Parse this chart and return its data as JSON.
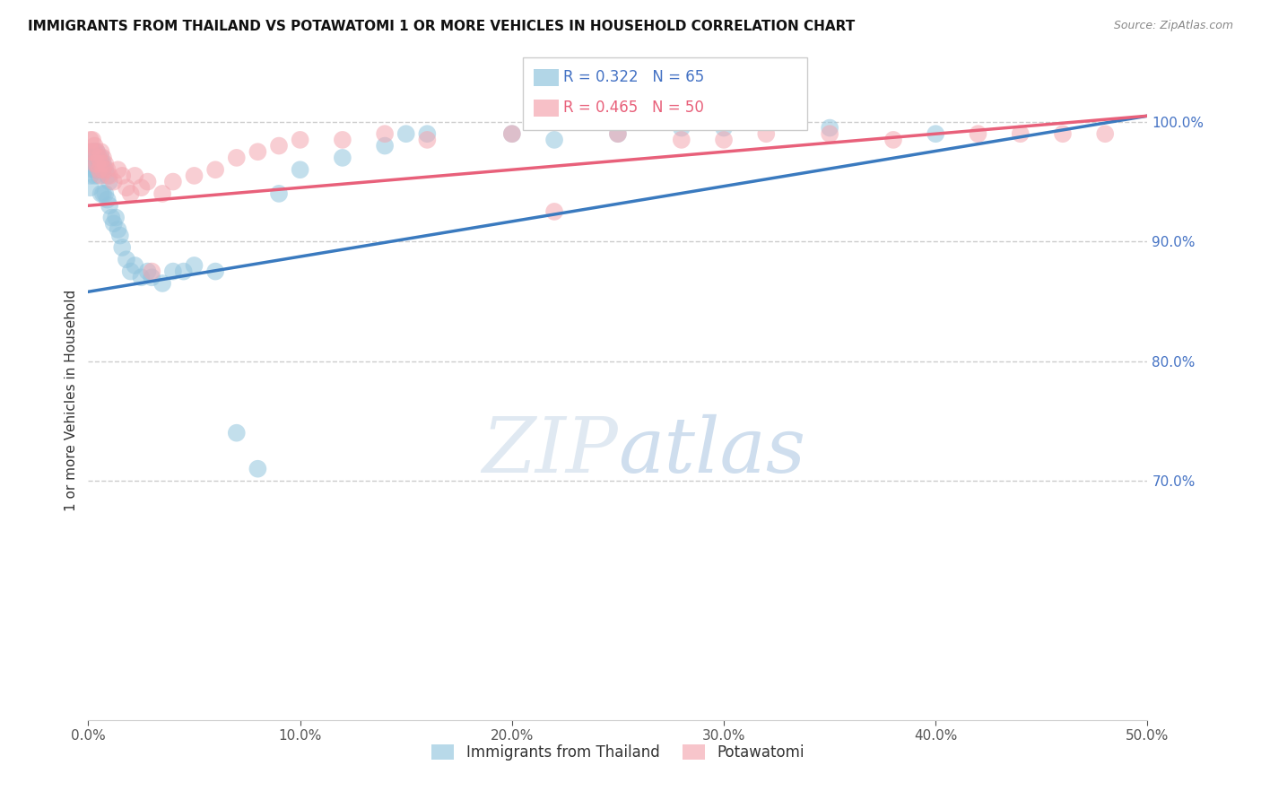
{
  "title": "IMMIGRANTS FROM THAILAND VS POTAWATOMI 1 OR MORE VEHICLES IN HOUSEHOLD CORRELATION CHART",
  "source": "Source: ZipAtlas.com",
  "ylabel": "1 or more Vehicles in Household",
  "r_blue": 0.322,
  "n_blue": 65,
  "r_pink": 0.465,
  "n_pink": 50,
  "blue_color": "#92c5de",
  "pink_color": "#f4a6b0",
  "blue_line_color": "#3a7abf",
  "pink_line_color": "#e8607a",
  "legend_blue_label": "Immigrants from Thailand",
  "legend_pink_label": "Potawatomi",
  "xmin": 0.0,
  "xmax": 0.5,
  "ymin": 0.5,
  "ymax": 1.035,
  "blue_x": [
    0.001,
    0.001,
    0.001,
    0.002,
    0.002,
    0.002,
    0.002,
    0.003,
    0.003,
    0.003,
    0.003,
    0.003,
    0.004,
    0.004,
    0.004,
    0.004,
    0.005,
    0.005,
    0.005,
    0.005,
    0.006,
    0.006,
    0.006,
    0.006,
    0.007,
    0.007,
    0.007,
    0.008,
    0.008,
    0.009,
    0.009,
    0.01,
    0.01,
    0.011,
    0.012,
    0.013,
    0.014,
    0.015,
    0.016,
    0.018,
    0.02,
    0.022,
    0.025,
    0.028,
    0.03,
    0.035,
    0.04,
    0.045,
    0.05,
    0.06,
    0.07,
    0.08,
    0.09,
    0.1,
    0.12,
    0.14,
    0.15,
    0.16,
    0.2,
    0.22,
    0.25,
    0.28,
    0.3,
    0.35,
    0.4
  ],
  "blue_y": [
    0.965,
    0.955,
    0.945,
    0.975,
    0.97,
    0.965,
    0.96,
    0.975,
    0.97,
    0.965,
    0.96,
    0.955,
    0.975,
    0.97,
    0.965,
    0.96,
    0.97,
    0.965,
    0.96,
    0.955,
    0.97,
    0.965,
    0.96,
    0.94,
    0.965,
    0.96,
    0.94,
    0.96,
    0.94,
    0.955,
    0.935,
    0.95,
    0.93,
    0.92,
    0.915,
    0.92,
    0.91,
    0.905,
    0.895,
    0.885,
    0.875,
    0.88,
    0.87,
    0.875,
    0.87,
    0.865,
    0.875,
    0.875,
    0.88,
    0.875,
    0.74,
    0.71,
    0.94,
    0.96,
    0.97,
    0.98,
    0.99,
    0.99,
    0.99,
    0.985,
    0.99,
    0.995,
    0.995,
    0.995,
    0.99
  ],
  "pink_x": [
    0.001,
    0.001,
    0.002,
    0.002,
    0.003,
    0.003,
    0.004,
    0.004,
    0.005,
    0.005,
    0.006,
    0.006,
    0.006,
    0.007,
    0.007,
    0.008,
    0.009,
    0.01,
    0.012,
    0.014,
    0.016,
    0.018,
    0.02,
    0.022,
    0.025,
    0.028,
    0.03,
    0.035,
    0.04,
    0.05,
    0.06,
    0.07,
    0.08,
    0.09,
    0.1,
    0.12,
    0.14,
    0.16,
    0.2,
    0.22,
    0.25,
    0.28,
    0.3,
    0.32,
    0.35,
    0.38,
    0.42,
    0.44,
    0.46,
    0.48
  ],
  "pink_y": [
    0.985,
    0.975,
    0.985,
    0.975,
    0.98,
    0.965,
    0.975,
    0.965,
    0.97,
    0.96,
    0.975,
    0.965,
    0.955,
    0.97,
    0.96,
    0.965,
    0.96,
    0.955,
    0.95,
    0.96,
    0.955,
    0.945,
    0.94,
    0.955,
    0.945,
    0.95,
    0.875,
    0.94,
    0.95,
    0.955,
    0.96,
    0.97,
    0.975,
    0.98,
    0.985,
    0.985,
    0.99,
    0.985,
    0.99,
    0.925,
    0.99,
    0.985,
    0.985,
    0.99,
    0.99,
    0.985,
    0.99,
    0.99,
    0.99,
    0.99
  ],
  "blue_line_x": [
    0.0,
    0.5
  ],
  "blue_line_y": [
    0.858,
    1.005
  ],
  "pink_line_x": [
    0.0,
    0.5
  ],
  "pink_line_y": [
    0.93,
    1.005
  ]
}
